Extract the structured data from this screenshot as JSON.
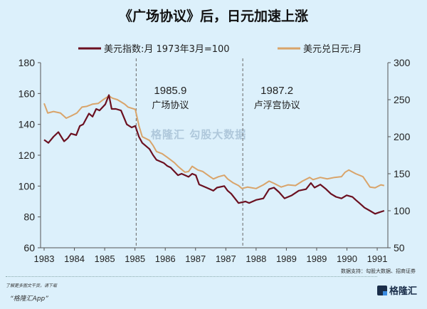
{
  "chart_data": {
    "type": "line",
    "title": "《广场协议》后，日元加速上涨",
    "x_tick_labels": [
      "1983",
      "1984",
      "1985",
      "1985",
      "1986",
      "1987",
      "1987",
      "1988",
      "1989",
      "1989",
      "1990",
      "1991"
    ],
    "x_units": "tick index",
    "y_left": {
      "ylim": [
        60,
        180
      ],
      "ticks": [
        60,
        80,
        100,
        120,
        140,
        160,
        180
      ]
    },
    "y_right": {
      "ylim": [
        50,
        300
      ],
      "ticks": [
        50,
        100,
        150,
        200,
        250,
        300
      ]
    },
    "legend_position": "top",
    "series": [
      {
        "name": "美元指数:月 1973年3月=100",
        "axis": "left",
        "color": "#6b1020",
        "points": [
          [
            0,
            130
          ],
          [
            0.14,
            128
          ],
          [
            0.31,
            132
          ],
          [
            0.47,
            135
          ],
          [
            0.66,
            129
          ],
          [
            0.78,
            131
          ],
          [
            0.89,
            134
          ],
          [
            1.06,
            133
          ],
          [
            1.18,
            139
          ],
          [
            1.29,
            140
          ],
          [
            1.48,
            147
          ],
          [
            1.6,
            145
          ],
          [
            1.72,
            150
          ],
          [
            1.83,
            149
          ],
          [
            2.02,
            153
          ],
          [
            2.14,
            159
          ],
          [
            2.23,
            150
          ],
          [
            2.37,
            150
          ],
          [
            2.54,
            149
          ],
          [
            2.73,
            140
          ],
          [
            2.89,
            138
          ],
          [
            3.01,
            139
          ],
          [
            3.13,
            132
          ],
          [
            3.24,
            128
          ],
          [
            3.48,
            124
          ],
          [
            3.6,
            120
          ],
          [
            3.71,
            117
          ],
          [
            3.95,
            115
          ],
          [
            4.07,
            113
          ],
          [
            4.18,
            112
          ],
          [
            4.42,
            107
          ],
          [
            4.54,
            108
          ],
          [
            4.77,
            106
          ],
          [
            4.89,
            108
          ],
          [
            5.01,
            107
          ],
          [
            5.12,
            101
          ],
          [
            5.36,
            99
          ],
          [
            5.59,
            97
          ],
          [
            5.71,
            99
          ],
          [
            5.95,
            100
          ],
          [
            6.06,
            97
          ],
          [
            6.18,
            95
          ],
          [
            6.42,
            89
          ],
          [
            6.65,
            90
          ],
          [
            6.77,
            89
          ],
          [
            7.0,
            91
          ],
          [
            7.24,
            92
          ],
          [
            7.43,
            98
          ],
          [
            7.59,
            99
          ],
          [
            7.76,
            96
          ],
          [
            7.94,
            92
          ],
          [
            8.18,
            94
          ],
          [
            8.41,
            97
          ],
          [
            8.65,
            98
          ],
          [
            8.81,
            102
          ],
          [
            8.93,
            99
          ],
          [
            9.12,
            101
          ],
          [
            9.31,
            98
          ],
          [
            9.47,
            95
          ],
          [
            9.64,
            93
          ],
          [
            9.82,
            92
          ],
          [
            9.99,
            94
          ],
          [
            10.18,
            93
          ],
          [
            10.29,
            91
          ],
          [
            10.41,
            89
          ],
          [
            10.58,
            86
          ],
          [
            10.76,
            84
          ],
          [
            10.93,
            82
          ],
          [
            11.07,
            83
          ],
          [
            11.23,
            84
          ]
        ]
      },
      {
        "name": "美元兑日元:月",
        "axis": "right",
        "color": "#d9a46a",
        "points": [
          [
            0,
            245
          ],
          [
            0.12,
            232
          ],
          [
            0.31,
            234
          ],
          [
            0.54,
            232
          ],
          [
            0.73,
            225
          ],
          [
            0.89,
            228
          ],
          [
            1.08,
            232
          ],
          [
            1.25,
            240
          ],
          [
            1.41,
            241
          ],
          [
            1.6,
            244
          ],
          [
            1.79,
            245
          ],
          [
            1.95,
            250
          ],
          [
            2.14,
            255
          ],
          [
            2.26,
            252
          ],
          [
            2.42,
            250
          ],
          [
            2.66,
            244
          ],
          [
            2.77,
            240
          ],
          [
            3.01,
            237
          ],
          [
            3.13,
            215
          ],
          [
            3.24,
            200
          ],
          [
            3.48,
            195
          ],
          [
            3.6,
            188
          ],
          [
            3.71,
            180
          ],
          [
            3.9,
            177
          ],
          [
            4.07,
            172
          ],
          [
            4.3,
            165
          ],
          [
            4.42,
            160
          ],
          [
            4.65,
            152
          ],
          [
            4.77,
            153
          ],
          [
            4.89,
            160
          ],
          [
            5.08,
            155
          ],
          [
            5.24,
            153
          ],
          [
            5.48,
            146
          ],
          [
            5.59,
            143
          ],
          [
            5.76,
            146
          ],
          [
            5.95,
            148
          ],
          [
            6.06,
            143
          ],
          [
            6.23,
            138
          ],
          [
            6.42,
            134
          ],
          [
            6.53,
            130
          ],
          [
            6.72,
            132
          ],
          [
            7.0,
            130
          ],
          [
            7.24,
            135
          ],
          [
            7.43,
            140
          ],
          [
            7.59,
            137
          ],
          [
            7.83,
            132
          ],
          [
            8.06,
            135
          ],
          [
            8.3,
            134
          ],
          [
            8.53,
            140
          ],
          [
            8.77,
            145
          ],
          [
            8.88,
            142
          ],
          [
            9.12,
            145
          ],
          [
            9.35,
            143
          ],
          [
            9.59,
            145
          ],
          [
            9.82,
            146
          ],
          [
            9.94,
            152
          ],
          [
            10.06,
            155
          ],
          [
            10.29,
            150
          ],
          [
            10.53,
            146
          ],
          [
            10.76,
            132
          ],
          [
            10.93,
            131
          ],
          [
            11.12,
            135
          ],
          [
            11.23,
            134
          ]
        ]
      }
    ],
    "annotations": [
      {
        "x": 3.04,
        "date": "1985.9",
        "label": "广场协议"
      },
      {
        "x": 6.56,
        "date": "1987.2",
        "label": "卢浮宫协议"
      }
    ]
  },
  "watermark": "格隆汇  勾股大数据",
  "source": "数据支持：勾股大数据、招商证券",
  "footer": {
    "line1": "了解更多图文干货，请下载",
    "line2": "“格隆汇App”",
    "logo": "格隆汇"
  }
}
